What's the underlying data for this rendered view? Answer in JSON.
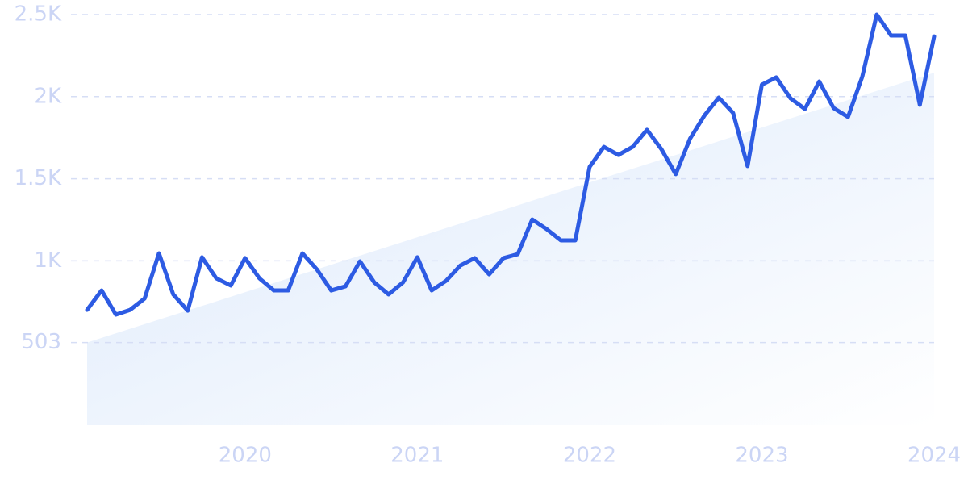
{
  "chart_data": {
    "type": "line",
    "x": [
      2019.083,
      2019.167,
      2019.25,
      2019.333,
      2019.417,
      2019.5,
      2019.583,
      2019.667,
      2019.75,
      2019.833,
      2019.917,
      2020,
      2020.083,
      2020.167,
      2020.25,
      2020.333,
      2020.417,
      2020.5,
      2020.583,
      2020.667,
      2020.75,
      2020.833,
      2020.917,
      2021,
      2021.083,
      2021.167,
      2021.25,
      2021.333,
      2021.417,
      2021.5,
      2021.583,
      2021.667,
      2021.75,
      2021.833,
      2021.917,
      2022,
      2022.083,
      2022.167,
      2022.25,
      2022.333,
      2022.417,
      2022.5,
      2022.583,
      2022.667,
      2022.75,
      2022.833,
      2022.917,
      2023,
      2023.083,
      2023.167,
      2023.25,
      2023.333,
      2023.417,
      2023.5,
      2023.583,
      2023.667,
      2023.75,
      2023.833,
      2023.917,
      2024
    ],
    "series": [
      {
        "color": "#2d5be3",
        "values": [
          702,
          820,
          673,
          702,
          771,
          1046,
          796,
          697,
          1022,
          894,
          850,
          1017,
          894,
          820,
          820,
          1046,
          948,
          820,
          845,
          997,
          869,
          796,
          869,
          1022,
          820,
          879,
          972,
          1017,
          918,
          1017,
          1041,
          1252,
          1194,
          1125,
          1125,
          1572,
          1694,
          1645,
          1694,
          1798,
          1680,
          1528,
          1744,
          1886,
          1994,
          1901,
          1577,
          2073,
          2117,
          1989,
          1925,
          2092,
          1930,
          1876,
          2122,
          2500,
          2372,
          2372,
          1950,
          2367
        ]
      }
    ],
    "trend_values": [
      503,
      2146
    ],
    "trend_color": "#dce9fb",
    "xlim": [
      2019.083,
      2024
    ],
    "xticks": [
      2020,
      2021,
      2022,
      2023,
      2024
    ],
    "ylim": [
      0,
      2500
    ],
    "yticks": [
      503,
      {
        "value": 1000,
        "label": "1K"
      },
      {
        "value": 1500,
        "label": "1.5K"
      },
      {
        "value": 2000,
        "label": "2K"
      },
      {
        "value": 2500,
        "label": "2.5K"
      }
    ],
    "grid": true
  }
}
